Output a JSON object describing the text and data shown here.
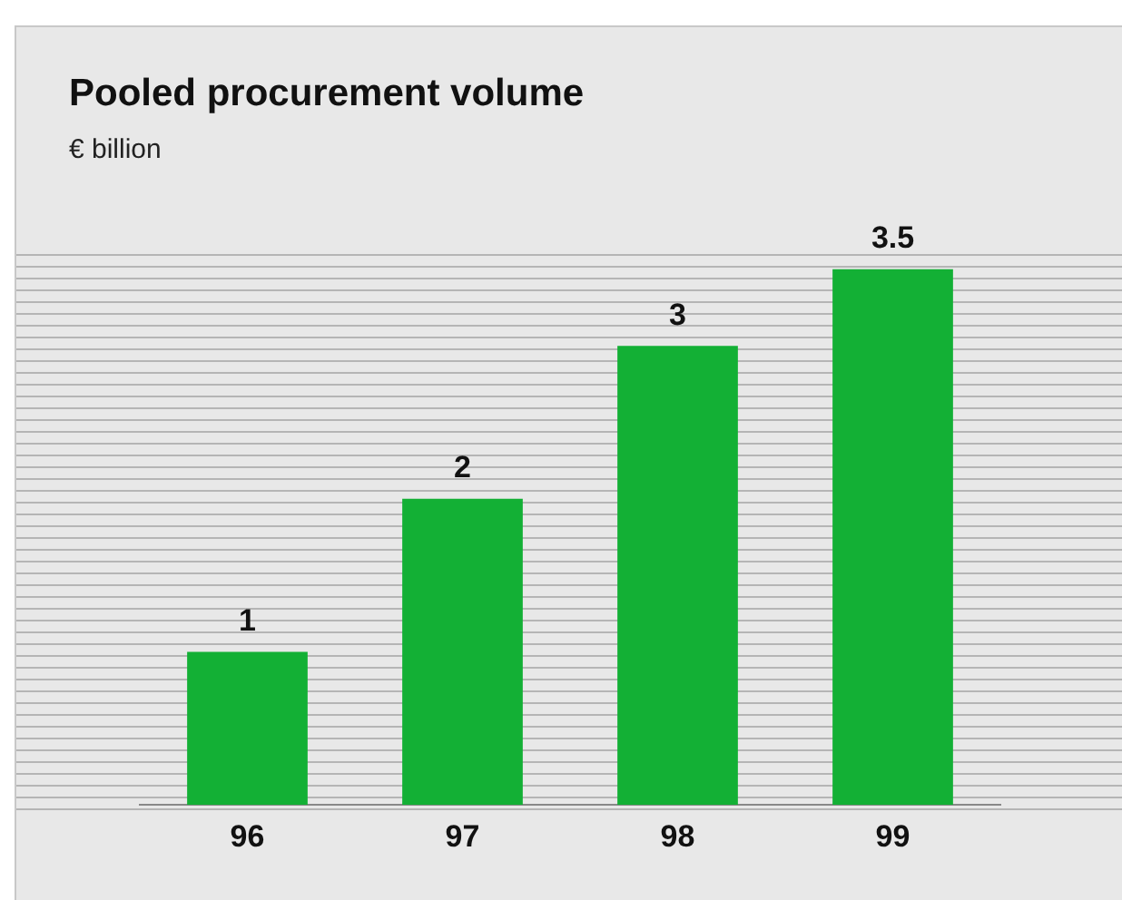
{
  "chart_data": {
    "type": "bar",
    "title": "Pooled procurement volume",
    "subtitle": "€ billion",
    "categories": [
      "96",
      "97",
      "98",
      "99"
    ],
    "values": [
      1,
      2,
      3,
      3.5
    ],
    "color": "#13b035",
    "ylim": [
      0,
      3.6
    ],
    "data_labels": true,
    "legend": false
  }
}
